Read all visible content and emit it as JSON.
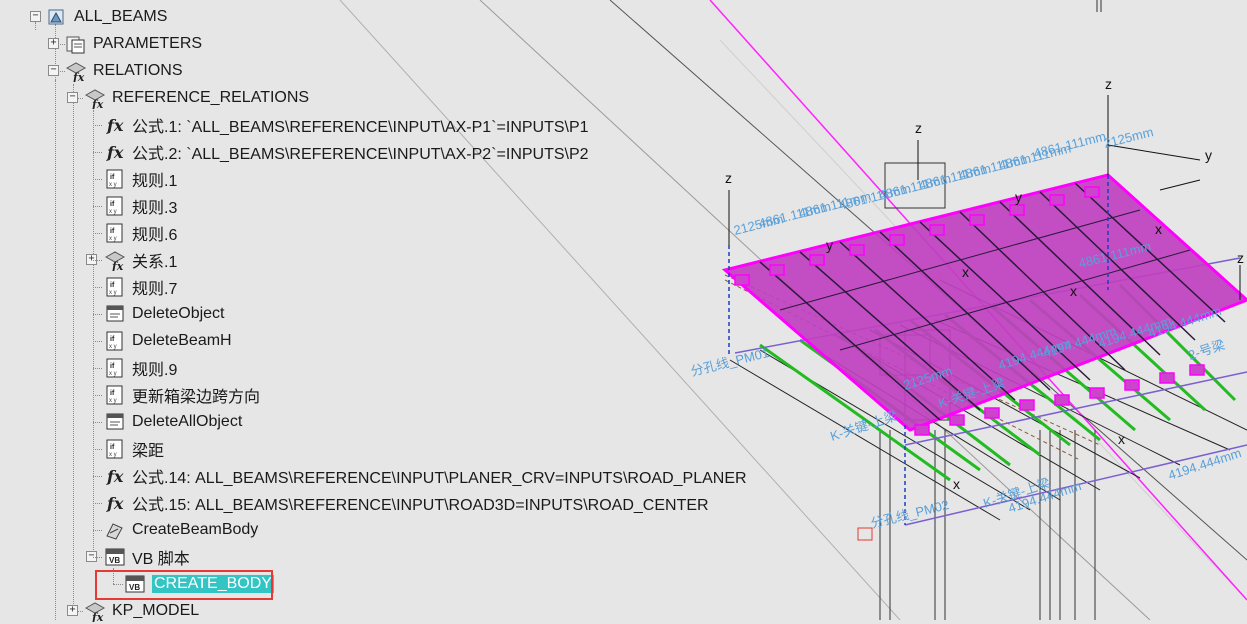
{
  "tree": {
    "root": "ALL_BEAMS",
    "parameters": "PARAMETERS",
    "relations": "RELATIONS",
    "reference_relations": "REFERENCE_RELATIONS",
    "items": [
      {
        "label": "公式.1: `ALL_BEAMS\\REFERENCE\\INPUT\\AX-P1`=INPUTS\\P1",
        "icon": "formula-icon"
      },
      {
        "label": "公式.2: `ALL_BEAMS\\REFERENCE\\INPUT\\AX-P2`=INPUTS\\P2",
        "icon": "formula-icon"
      },
      {
        "label": "规则.1",
        "icon": "rule-icon"
      },
      {
        "label": "规则.3",
        "icon": "rule-icon"
      },
      {
        "label": "规则.6",
        "icon": "rule-icon"
      },
      {
        "label": "关系.1",
        "icon": "relations-icon"
      },
      {
        "label": "规则.7",
        "icon": "rule-icon"
      },
      {
        "label": "DeleteObject",
        "icon": "script-icon"
      },
      {
        "label": "DeleteBeamH",
        "icon": "rule-icon"
      },
      {
        "label": "规则.9",
        "icon": "rule-icon"
      },
      {
        "label": "更新箱梁边跨方向",
        "icon": "rule-icon"
      },
      {
        "label": "DeleteAllObject",
        "icon": "script-icon"
      },
      {
        "label": "梁距",
        "icon": "rule-icon"
      },
      {
        "label": "公式.14: ALL_BEAMS\\REFERENCE\\INPUT\\PLANER_CRV=INPUTS\\ROAD_PLANER",
        "icon": "formula-icon"
      },
      {
        "label": "公式.15: ALL_BEAMS\\REFERENCE\\INPUT\\ROAD3D=INPUTS\\ROAD_CENTER",
        "icon": "formula-icon"
      },
      {
        "label": "CreateBeamBody",
        "icon": "action-icon"
      },
      {
        "label": "VB 脚本",
        "icon": "vb-script-icon"
      }
    ],
    "selected_child": "CREATE_BODY",
    "last": "KP_MODEL"
  },
  "viewport": {
    "axis_labels": [
      "z",
      "z",
      "z",
      "z",
      "y",
      "y",
      "y",
      "x",
      "x",
      "x",
      "x",
      "x"
    ],
    "dim_labels": [
      "4861.111mm",
      "4861.111mm",
      "4861.111mm",
      "4861.111mm",
      "4861.111mm",
      "4861.111mm",
      "2125mm",
      "2125mm",
      "4861.111mm",
      "4861.111mm",
      "4861.111mm",
      "4194.444mm",
      "4194.444mm",
      "4194.444mm",
      "4194.444mm",
      "2125mm",
      "分孔线_PM01",
      "分孔线_PM02",
      "K-关键-上梁",
      "K-关键-上梁",
      "K-关键-上梁",
      "4194.444mm",
      "4194.444mm",
      "2-号梁"
    ],
    "colors": {
      "deck": "#c040c0",
      "deck_edge": "#ff00ff",
      "girder": "#1a1a1a",
      "green": "#22bb22",
      "dim": "#5aa0d8",
      "selection": "#33c4c4",
      "highlight_box": "#e53935"
    }
  }
}
